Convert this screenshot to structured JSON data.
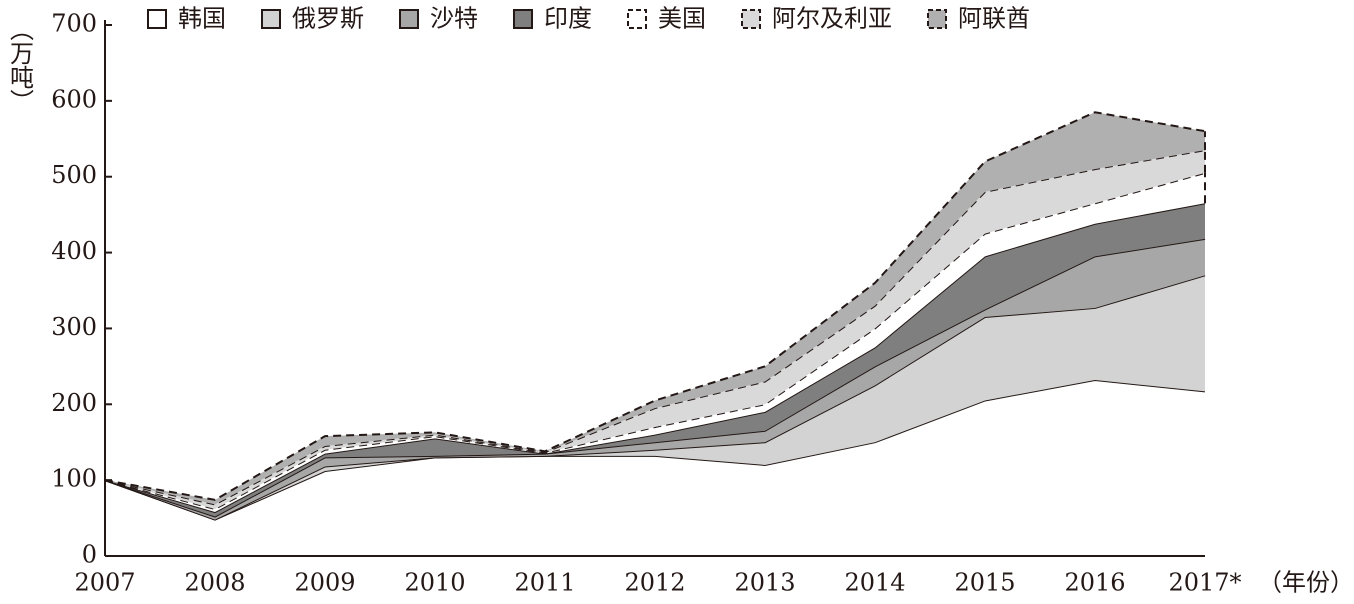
{
  "chart_data": {
    "type": "stacked-area",
    "y_label": "（万吨）",
    "x_label": "（年份）",
    "categories": [
      "2007",
      "2008",
      "2009",
      "2010",
      "2011",
      "2012",
      "2013",
      "2014",
      "2015",
      "2016",
      "2017*"
    ],
    "series": [
      {
        "name": "韩国",
        "color": "#ffffff",
        "dashed": false,
        "values": [
          100,
          48,
          112,
          130,
          132,
          132,
          120,
          150,
          205,
          232,
          217
        ]
      },
      {
        "name": "俄罗斯",
        "color": "#d3d3d3",
        "dashed": false,
        "values": [
          0,
          0,
          6,
          0,
          0,
          8,
          30,
          75,
          110,
          95,
          153
        ]
      },
      {
        "name": "沙特",
        "color": "#a7a7a7",
        "dashed": false,
        "values": [
          0,
          4,
          12,
          2,
          3,
          10,
          15,
          25,
          10,
          68,
          48
        ]
      },
      {
        "name": "印度",
        "color": "#7f7f7f",
        "dashed": false,
        "values": [
          0,
          6,
          5,
          23,
          0,
          10,
          25,
          25,
          70,
          43,
          47
        ]
      },
      {
        "name": "美国",
        "color": "#ffffff",
        "dashed": true,
        "values": [
          0,
          4,
          5,
          3,
          1,
          10,
          10,
          25,
          30,
          27,
          40
        ]
      },
      {
        "name": "阿尔及利亚",
        "color": "#d9d9d9",
        "dashed": true,
        "values": [
          0,
          6,
          5,
          2,
          1,
          25,
          30,
          30,
          55,
          45,
          30
        ]
      },
      {
        "name": "阿联酋",
        "color": "#b0b0b0",
        "dashed": true,
        "values": [
          0,
          6,
          13,
          3,
          1,
          10,
          20,
          30,
          40,
          75,
          25
        ]
      }
    ],
    "ylim": [
      0,
      700
    ],
    "yticks": [
      0,
      100,
      200,
      300,
      400,
      500,
      600,
      700
    ],
    "grid": false
  }
}
